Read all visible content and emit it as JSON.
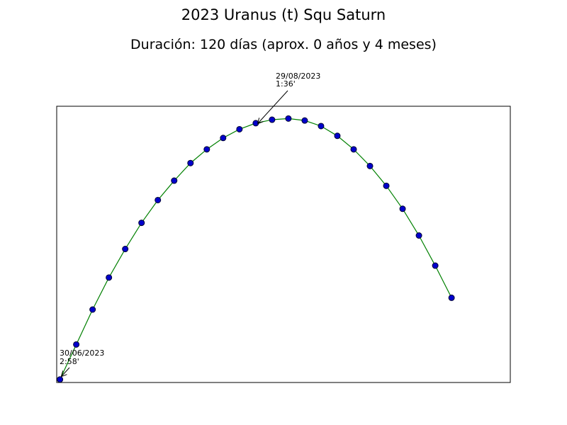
{
  "chart_data": {
    "type": "line",
    "title": "2023 Uranus (t) Squ Saturn",
    "subtitle": "Duración: 120 días (aprox. 0 años y 4 meses)",
    "xlabel": "",
    "ylabel": "",
    "x_axis_ticks_shown": false,
    "y_axis_ticks_shown": false,
    "grid": false,
    "line_color": "#008000",
    "marker_face_color": "#0000cc",
    "marker_edge_color": "#000033",
    "x": [
      0,
      5,
      10,
      15,
      20,
      25,
      30,
      35,
      40,
      45,
      50,
      55,
      60,
      65,
      70,
      75,
      80,
      85,
      90,
      95,
      100,
      105,
      110,
      115,
      120
    ],
    "y": [
      -1.4,
      51.5,
      104.4,
      152.8,
      196.0,
      235.6,
      270.0,
      299.4,
      326.0,
      346.8,
      364.0,
      377.2,
      386.4,
      391.6,
      393.4,
      390.4,
      382.0,
      367.2,
      346.8,
      321.6,
      291.6,
      256.8,
      216.4,
      170.8,
      122.2
    ],
    "xlim": [
      -1,
      138
    ],
    "ylim": [
      -6,
      412
    ],
    "annotations": [
      {
        "line1": "30/06/2023",
        "line2": "2:58'"
      },
      {
        "line1": "29/08/2023",
        "line2": "1:36'"
      }
    ]
  }
}
